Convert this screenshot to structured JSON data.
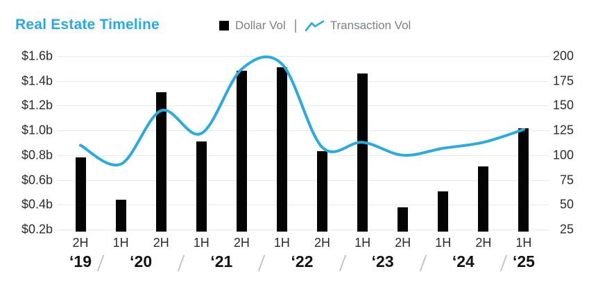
{
  "title": "Real Estate Timeline",
  "legend": {
    "bar_label": "Dollar Vol",
    "separator": "|",
    "line_label": "Transaction Vol"
  },
  "colors": {
    "accent_blue": "#29A9E1",
    "line_blue": "#29ABE2",
    "bar_black": "#000000",
    "legend_text_gray": "#7D7F82",
    "axis_text": "#2B2B2C",
    "gridline_gray": "#E8E9EA",
    "slash_gray": "#C3C5C7"
  },
  "chart_data": {
    "type": "bar+line combo",
    "title": "Real Estate Timeline",
    "grid": "horizontal",
    "legend_position": "top",
    "categories": [
      "2H ‘19",
      "1H ‘20",
      "2H ‘20",
      "1H ‘21",
      "2H ‘21",
      "1H ‘22",
      "2H ‘22",
      "1H ‘23",
      "2H ‘23",
      "1H ‘24",
      "2H ‘24",
      "1H ‘25"
    ],
    "period_labels": [
      "2H",
      "1H",
      "2H",
      "1H",
      "2H",
      "1H",
      "2H",
      "1H",
      "2H",
      "1H",
      "2H",
      "1H"
    ],
    "year_groups": [
      {
        "label": "‘19",
        "periods": 1
      },
      {
        "label": "‘20",
        "periods": 2
      },
      {
        "label": "‘21",
        "periods": 2
      },
      {
        "label": "‘22",
        "periods": 2
      },
      {
        "label": "‘23",
        "periods": 2
      },
      {
        "label": "‘24",
        "periods": 2
      },
      {
        "label": "‘25",
        "periods": 1
      }
    ],
    "series": [
      {
        "name": "Dollar Vol",
        "type": "bar",
        "axis": "left",
        "unit": "$ billions",
        "values": [
          0.78,
          0.44,
          1.31,
          0.91,
          1.48,
          1.51,
          0.83,
          1.46,
          0.38,
          0.51,
          0.71,
          1.02
        ]
      },
      {
        "name": "Transaction Vol",
        "type": "line",
        "axis": "right",
        "unit": "transactions",
        "values": [
          110,
          91,
          145,
          122,
          187,
          192,
          108,
          113,
          100,
          107,
          113,
          126
        ]
      }
    ],
    "left_axis": {
      "tick_labels": [
        "$1.6b",
        "$1.4b",
        "$1.2b",
        "$1.0b",
        "$0.8b",
        "$0.6b",
        "$0.4b",
        "$0.2b"
      ],
      "tick_values": [
        1.6,
        1.4,
        1.2,
        1.0,
        0.8,
        0.6,
        0.4,
        0.2
      ]
    },
    "right_axis": {
      "tick_labels": [
        "200",
        "175",
        "150",
        "125",
        "100",
        "75",
        "50",
        "25"
      ],
      "tick_values": [
        200,
        175,
        150,
        125,
        100,
        75,
        50,
        25
      ]
    }
  }
}
